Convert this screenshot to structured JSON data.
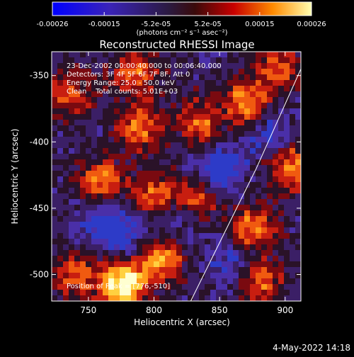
{
  "colorbar": {
    "tick_labels": [
      "-0.00026",
      "-0.00015",
      "-5.2e-05",
      "5.2e-05",
      "0.00015",
      "0.00026"
    ],
    "units": "(photons cm⁻² s⁻¹ asec⁻²)"
  },
  "title": "Reconstructed RHESSI Image",
  "info": {
    "time_range": "23-Dec-2002 00:00:40.000 to 00:06:40.000",
    "detectors": "Detectors: 3F 4F 5F 6F 7F 8F, Att 0",
    "energy": "Energy Range: 25.0 - 50.0 keV",
    "clean": "Clean    Total counts: 5.01E+03"
  },
  "peak": "Position of Peak = [776,-510]",
  "axes": {
    "xlabel": "Heliocentric X (arcsec)",
    "ylabel": "Heliocentric Y (arcsec)",
    "xticks": [
      "750",
      "800",
      "850",
      "900"
    ],
    "yticks": [
      "-350",
      "-400",
      "-450",
      "-500"
    ],
    "xlim": [
      722,
      912
    ],
    "ylim": [
      -520,
      -332
    ]
  },
  "date_stamp": "4-May-2022 14:18",
  "colors": {
    "background": "#000000",
    "foreground": "#ffffff",
    "colormap_low": "#0000ff",
    "colormap_mid": "#3a1e58",
    "colormap_high": "#ffff00"
  },
  "chart_data": {
    "type": "heatmap",
    "title": "Reconstructed RHESSI Image",
    "xlabel": "Heliocentric X (arcsec)",
    "ylabel": "Heliocentric Y (arcsec)",
    "xlim": [
      722,
      912
    ],
    "ylim": [
      -520,
      -332
    ],
    "color_range": [
      -0.00026,
      0.00026
    ],
    "peak_position": [
      776,
      -510
    ],
    "hot_regions": [
      {
        "x": 776,
        "y": -508,
        "level": 1.0
      },
      {
        "x": 805,
        "y": -490,
        "level": 0.6
      },
      {
        "x": 760,
        "y": -430,
        "level": 0.55
      },
      {
        "x": 800,
        "y": -440,
        "level": 0.5
      },
      {
        "x": 830,
        "y": -445,
        "level": 0.55
      },
      {
        "x": 790,
        "y": -390,
        "level": 0.55
      },
      {
        "x": 835,
        "y": -385,
        "level": 0.5
      },
      {
        "x": 870,
        "y": -370,
        "level": 0.6
      },
      {
        "x": 905,
        "y": -420,
        "level": 0.6
      },
      {
        "x": 875,
        "y": -465,
        "level": 0.55
      },
      {
        "x": 880,
        "y": -505,
        "level": 0.5
      },
      {
        "x": 740,
        "y": -500,
        "level": 0.45
      },
      {
        "x": 735,
        "y": -365,
        "level": 0.45
      },
      {
        "x": 785,
        "y": -348,
        "level": 0.55
      },
      {
        "x": 895,
        "y": -345,
        "level": 0.45
      }
    ],
    "cold_regions": [
      {
        "x": 760,
        "y": -460,
        "level": -0.4
      },
      {
        "x": 850,
        "y": -420,
        "level": -0.45
      },
      {
        "x": 820,
        "y": -455,
        "level": -0.35
      },
      {
        "x": 780,
        "y": -470,
        "level": -0.3
      },
      {
        "x": 860,
        "y": -490,
        "level": -0.3
      },
      {
        "x": 885,
        "y": -395,
        "level": -0.3
      }
    ],
    "limb_curve": [
      [
        828,
        -520
      ],
      [
        853,
        -470
      ],
      [
        878,
        -420
      ],
      [
        912,
        -345
      ]
    ]
  }
}
